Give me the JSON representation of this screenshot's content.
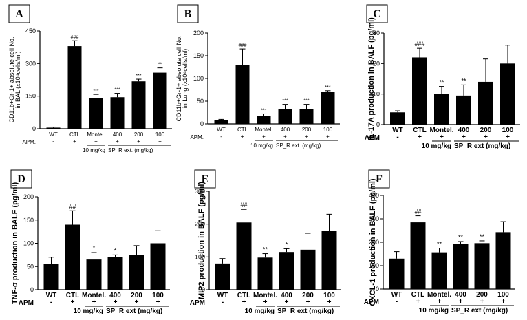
{
  "chart_data": [
    {
      "panel": "A",
      "type": "bar",
      "ylabel_lines": [
        "CD11b+Gr-1+ absolute cell No.",
        "in BAL (x10⁴cells/ml)"
      ],
      "ylim": [
        0,
        450
      ],
      "yticks": [
        0,
        150,
        300,
        450
      ],
      "categories": [
        "WT",
        "CTL",
        "Montel.",
        "400",
        "200",
        "100"
      ],
      "apm": [
        "-",
        "+",
        "+",
        "+",
        "+",
        "+"
      ],
      "values": [
        5,
        380,
        140,
        145,
        218,
        258
      ],
      "errors": [
        3,
        25,
        18,
        18,
        10,
        22
      ],
      "sig": [
        "",
        "###",
        "***",
        "***",
        "***",
        "**"
      ],
      "dose_label": "10 mg/kg",
      "extract_label": "SP_R  ext. (mg/kg)",
      "apm_label": "APM."
    },
    {
      "panel": "B",
      "type": "bar",
      "ylabel_lines": [
        "CD11b+Gr-1+ absolute cell No.",
        "in Lung (x10⁴cells/ml)"
      ],
      "ylim": [
        0,
        200
      ],
      "yticks": [
        0,
        50,
        100,
        150,
        200
      ],
      "categories": [
        "WT",
        "CTL",
        "Montel.",
        "400",
        "200",
        "100"
      ],
      "apm": [
        "-",
        "+",
        "+",
        "+",
        "+",
        "+"
      ],
      "values": [
        8,
        130,
        17,
        33,
        33,
        70
      ],
      "errors": [
        2,
        35,
        5,
        10,
        10,
        3
      ],
      "sig": [
        "",
        "###",
        "***",
        "***",
        "***",
        "***"
      ],
      "dose_label": "10 mg/kg",
      "extract_label": "SP_R  ext. (mg/kg)",
      "apm_label": "APM."
    },
    {
      "panel": "C",
      "type": "bar",
      "ylabel_lines": [
        "IL-17A production in  BALF (pg/ml)"
      ],
      "ylim": [
        0,
        30
      ],
      "yticks": [
        0,
        10,
        20,
        30
      ],
      "categories": [
        "WT",
        "CTL",
        "Montel.",
        "400",
        "200",
        "100"
      ],
      "apm": [
        "-",
        "+",
        "+",
        "+",
        "+",
        "+"
      ],
      "values": [
        4,
        22,
        10,
        9.5,
        14,
        20
      ],
      "errors": [
        0.5,
        3,
        2.5,
        3.5,
        7.5,
        6
      ],
      "sig": [
        "",
        "###",
        "**",
        "**",
        "",
        ""
      ],
      "dose_label": "10 mg/kg",
      "extract_label": "SP_R ext (mg/kg)",
      "apm_label": "APM"
    },
    {
      "panel": "D",
      "type": "bar",
      "ylabel_lines": [
        "TNF-α production in  BALF (pg/ml)"
      ],
      "ylim": [
        0,
        200
      ],
      "yticks": [
        0,
        50,
        100,
        150,
        200
      ],
      "categories": [
        "WT",
        "CTL",
        "Montel.",
        "400",
        "200",
        "100"
      ],
      "apm": [
        "-",
        "+",
        "+",
        "+",
        "+",
        "+"
      ],
      "values": [
        55,
        140,
        65,
        70,
        75,
        100
      ],
      "errors": [
        15,
        30,
        15,
        5,
        20,
        27
      ],
      "sig": [
        "",
        "##",
        "*",
        "*",
        "",
        ""
      ],
      "dose_label": "10 mg/kg",
      "extract_label": "SP_R ext (mg/kg)",
      "apm_label": "APM"
    },
    {
      "panel": "E",
      "type": "bar",
      "ylabel_lines": [
        "MIP2 production in  BALF (pg/ml)"
      ],
      "ylim": [
        0,
        300
      ],
      "yticks": [
        0,
        100,
        200,
        300
      ],
      "categories": [
        "WT",
        "CTL",
        "Montel.",
        "400",
        "200",
        "100"
      ],
      "apm": [
        "-",
        "+",
        "+",
        "+",
        "+",
        "+"
      ],
      "values": [
        80,
        205,
        98,
        115,
        122,
        180
      ],
      "errors": [
        15,
        40,
        12,
        10,
        50,
        50
      ],
      "sig": [
        "",
        "##",
        "**",
        "*",
        "",
        ""
      ],
      "dose_label": "10 mg/kg",
      "extract_label": "SP_R ext (mg/kg)",
      "apm_label": "APM"
    },
    {
      "panel": "F",
      "type": "bar",
      "ylabel_lines": [
        "CXCL-1 production in  BALF (pg/ml)"
      ],
      "ylim": [
        0,
        400
      ],
      "yticks": [
        0,
        100,
        200,
        300,
        400
      ],
      "categories": [
        "WT",
        "CTL",
        "Montel.",
        "400",
        "200",
        "100"
      ],
      "apm": [
        "-",
        "+",
        "+",
        "+",
        "+",
        "+"
      ],
      "values": [
        130,
        285,
        157,
        193,
        196,
        243
      ],
      "errors": [
        30,
        28,
        18,
        10,
        10,
        45
      ],
      "sig": [
        "",
        "##",
        "**",
        "**",
        "**",
        ""
      ],
      "dose_label": "10 mg/kg",
      "extract_label": "SP_R ext (mg/kg)",
      "apm_label": "APM"
    }
  ]
}
